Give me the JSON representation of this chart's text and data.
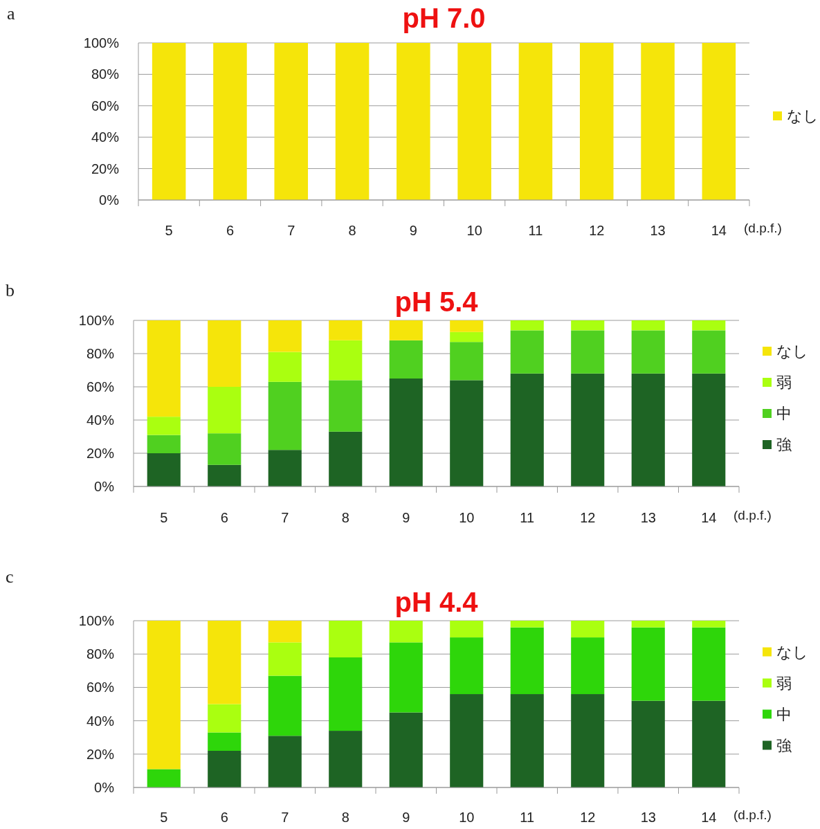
{
  "chart_data": [
    {
      "type": "bar",
      "title": "pH 7.0",
      "annotations": [
        "a"
      ],
      "xlabel": "(d.p.f.)",
      "categories": [
        "5",
        "6",
        "7",
        "8",
        "9",
        "10",
        "11",
        "12",
        "13",
        "14"
      ],
      "stacked": true,
      "ylim": [
        0,
        100
      ],
      "yticks": [
        {
          "value": 0,
          "label": "0%"
        },
        {
          "value": 20,
          "label": "20%"
        },
        {
          "value": 40,
          "label": "40%"
        },
        {
          "value": 60,
          "label": "60%"
        },
        {
          "value": 80,
          "label": "80%"
        },
        {
          "value": 100,
          "label": "100%"
        }
      ],
      "grid": "y",
      "legend": "right",
      "series": [
        {
          "name": "なし",
          "color": "#f5e50a",
          "values": [
            100,
            100,
            100,
            100,
            100,
            100,
            100,
            100,
            100,
            100
          ]
        }
      ]
    },
    {
      "type": "bar",
      "title": "pH 5.4",
      "annotations": [
        "b"
      ],
      "xlabel": "(d.p.f.)",
      "categories": [
        "5",
        "6",
        "7",
        "8",
        "9",
        "10",
        "11",
        "12",
        "13",
        "14"
      ],
      "stacked": true,
      "ylim": [
        0,
        100
      ],
      "yticks": [
        {
          "value": 0,
          "label": "0%"
        },
        {
          "value": 20,
          "label": "20%"
        },
        {
          "value": 40,
          "label": "40%"
        },
        {
          "value": 60,
          "label": "60%"
        },
        {
          "value": 80,
          "label": "80%"
        },
        {
          "value": 100,
          "label": "100%"
        }
      ],
      "grid": "y",
      "legend": "right",
      "series": [
        {
          "name": "強",
          "color": "#1e6424",
          "values": [
            20,
            13,
            22,
            33,
            65,
            64,
            68,
            68,
            68,
            68
          ]
        },
        {
          "name": "中",
          "color": "#50d020",
          "values": [
            11,
            19,
            41,
            31,
            23,
            23,
            26,
            26,
            26,
            26
          ]
        },
        {
          "name": "弱",
          "color": "#aaff10",
          "values": [
            11,
            28,
            18,
            24,
            0,
            6,
            6,
            6,
            6,
            6
          ]
        },
        {
          "name": "なし",
          "color": "#f5e50a",
          "values": [
            58,
            40,
            19,
            12,
            12,
            7,
            0,
            0,
            0,
            0
          ]
        }
      ]
    },
    {
      "type": "bar",
      "title": "pH 4.4",
      "annotations": [
        "c"
      ],
      "xlabel": "(d.p.f.)",
      "categories": [
        "5",
        "6",
        "7",
        "8",
        "9",
        "10",
        "11",
        "12",
        "13",
        "14"
      ],
      "stacked": true,
      "ylim": [
        0,
        100
      ],
      "yticks": [
        {
          "value": 0,
          "label": "0%"
        },
        {
          "value": 20,
          "label": "20%"
        },
        {
          "value": 40,
          "label": "40%"
        },
        {
          "value": 60,
          "label": "60%"
        },
        {
          "value": 80,
          "label": "80%"
        },
        {
          "value": 100,
          "label": "100%"
        }
      ],
      "grid": "y",
      "legend": "right",
      "series": [
        {
          "name": "強",
          "color": "#1e6424",
          "values": [
            0,
            22,
            31,
            34,
            45,
            56,
            56,
            56,
            52,
            52
          ]
        },
        {
          "name": "中",
          "color": "#2ed60a",
          "values": [
            11,
            11,
            36,
            44,
            42,
            34,
            40,
            34,
            44,
            44
          ]
        },
        {
          "name": "弱",
          "color": "#aaff10",
          "values": [
            0,
            17,
            20,
            22,
            13,
            10,
            4,
            10,
            4,
            4
          ]
        },
        {
          "name": "なし",
          "color": "#f5e50a",
          "values": [
            89,
            50,
            13,
            0,
            0,
            0,
            0,
            0,
            0,
            0
          ]
        }
      ]
    }
  ]
}
